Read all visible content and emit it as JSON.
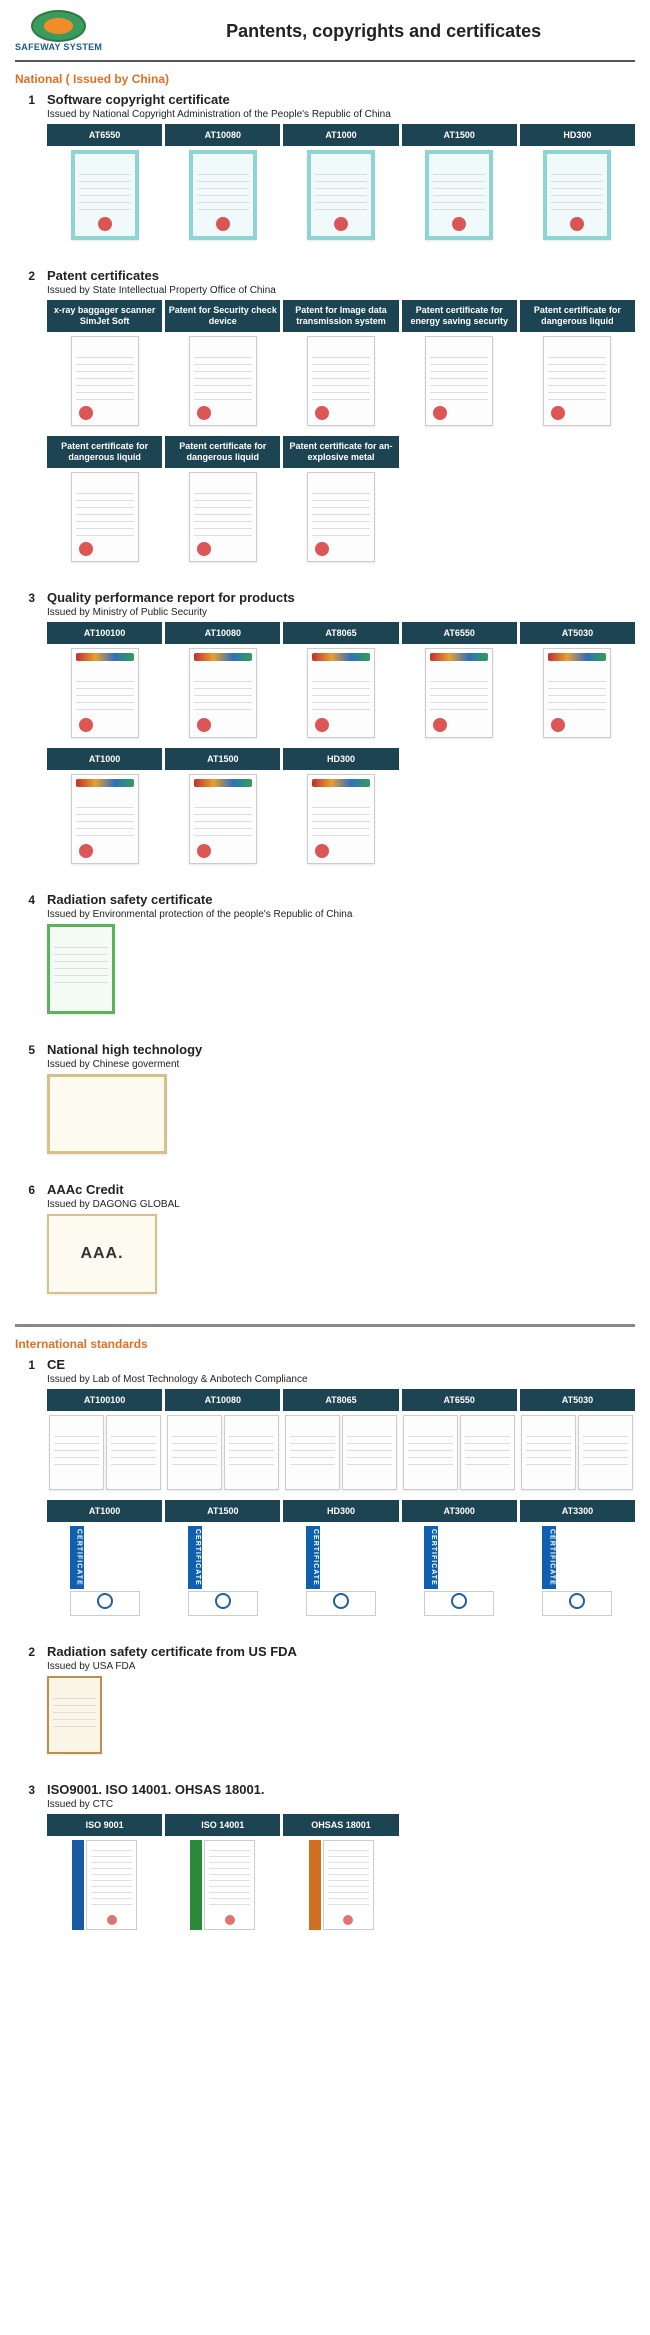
{
  "logo_text": "SAFEWAY SYSTEM",
  "page_title": "Pantents, copyrights and certificates",
  "colors": {
    "heading": "#e07020",
    "label_bg": "#1d4452"
  },
  "national": {
    "heading": "National ( Issued by China)",
    "items": [
      {
        "num": "1",
        "title": "Software copyright certificate",
        "subtitle": "Issued by National Copyright Administration of the People's Republic of China",
        "rows": [
          {
            "labels": [
              "AT6550",
              "AT10080",
              "AT1000",
              "AT1500",
              "HD300"
            ],
            "cert_style": "teal red-seal",
            "count": 5
          }
        ]
      },
      {
        "num": "2",
        "title": "Patent certificates",
        "subtitle": "Issued by State Intellectual Property Office of China",
        "rows": [
          {
            "labels": [
              "x-ray baggager scanner SimJet Soft",
              "Patent for Security check device",
              "Patent for Image data transmission system",
              "Patent certificate for energy saving security",
              "Patent certificate for dangerous liquid"
            ],
            "multiline": true,
            "cert_style": "red-seal-left",
            "count": 5
          },
          {
            "labels": [
              "Patent certificate for dangerous liquid",
              "Patent certificate for dangerous liquid",
              "Patent certificate for an-explosive metal"
            ],
            "multiline": true,
            "cert_style": "red-seal-left",
            "count": 3,
            "total_slots": 5
          }
        ]
      },
      {
        "num": "3",
        "title": "Quality performance report for products",
        "subtitle": "Issued by Ministry of Public Security",
        "rows": [
          {
            "labels": [
              "AT100100",
              "AT10080",
              "AT8065",
              "AT6550",
              "AT5030"
            ],
            "cert_style": "report blue-top red-seal-left",
            "count": 5
          },
          {
            "labels": [
              "AT1000",
              "AT1500",
              "HD300"
            ],
            "cert_style": "report blue-top red-seal-left",
            "count": 3,
            "total_slots": 5
          }
        ]
      },
      {
        "num": "4",
        "title": "Radiation safety certificate",
        "subtitle": "Issued by Environmental protection of the people's Republic of China",
        "rows": [
          {
            "labels": [],
            "cert_style": "green",
            "count": 1,
            "no_labels": true
          }
        ]
      },
      {
        "num": "5",
        "title": "National high technology",
        "subtitle": "Issued by Chinese goverment",
        "rows": [
          {
            "labels": [],
            "cert_style": "landscape",
            "count": 1,
            "no_labels": true
          }
        ]
      },
      {
        "num": "6",
        "title": "AAAc Credit",
        "subtitle": "Issued by DAGONG GLOBAL",
        "rows": [
          {
            "labels": [],
            "cert_style": "landscape-aaa",
            "count": 1,
            "no_labels": true,
            "inner_text": "AAA."
          }
        ]
      }
    ]
  },
  "international": {
    "heading": "International standards",
    "items": [
      {
        "num": "1",
        "title": "CE",
        "subtitle": "Issued by Lab of Most Technology & Anbotech Compliance",
        "rows": [
          {
            "labels": [
              "AT100100",
              "AT10080",
              "AT8065",
              "AT6550",
              "AT5030"
            ],
            "cert_style": "ce-pair",
            "count": 5
          },
          {
            "labels": [
              "AT1000",
              "AT1500",
              "HD300",
              "AT3000",
              "AT3300"
            ],
            "cert_style": "ce-blue",
            "count": 5,
            "ce_blue_text": "CERTIFICATE"
          }
        ]
      },
      {
        "num": "2",
        "title": "Radiation safety certificate from US FDA",
        "subtitle": "Issued by USA FDA",
        "rows": [
          {
            "labels": [],
            "cert_style": "fda",
            "count": 1,
            "no_labels": true
          }
        ]
      },
      {
        "num": "3",
        "title": "ISO9001. ISO 14001. OHSAS 18001.",
        "subtitle": "Issued by CTC",
        "rows": [
          {
            "labels": [
              "ISO 9001",
              "ISO 14001",
              "OHSAS 18001"
            ],
            "cert_style": "iso",
            "count": 3,
            "total_slots": 5,
            "iso_colors": [
              "blue",
              "green",
              "orange"
            ]
          }
        ]
      }
    ]
  }
}
